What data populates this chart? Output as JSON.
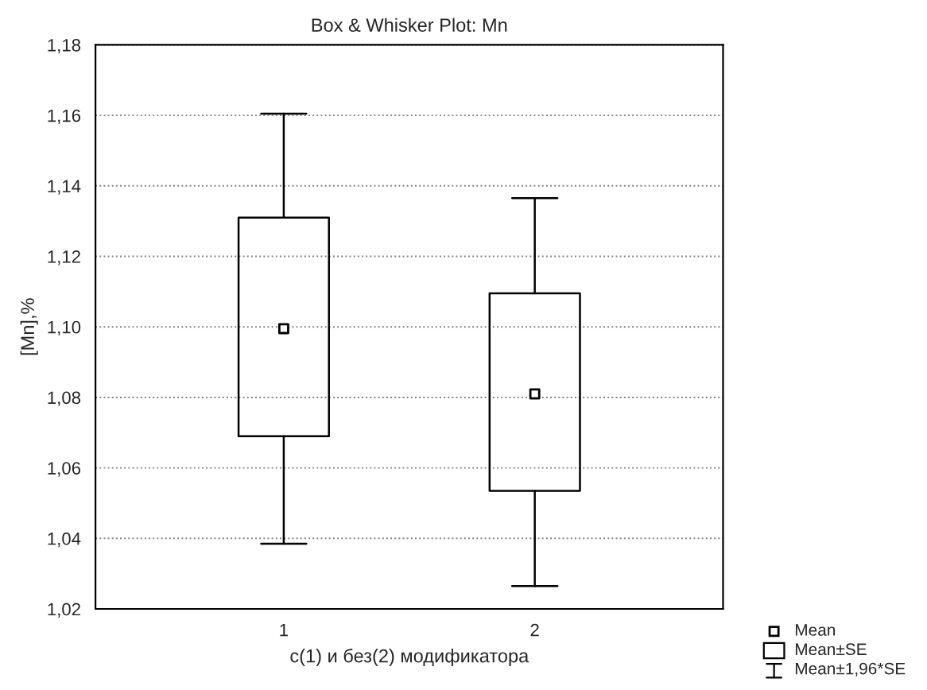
{
  "chart_data": {
    "type": "box",
    "title": "Box & Whisker Plot: Mn",
    "xlabel": "с(1) и без(2) модификатора",
    "ylabel": "[Mn],%",
    "categories": [
      "1",
      "2"
    ],
    "boxes": [
      {
        "low": 1.0385,
        "q1": 1.069,
        "median": 1.0995,
        "q3": 1.131,
        "high": 1.1605
      },
      {
        "low": 1.0265,
        "q1": 1.0535,
        "median": 1.081,
        "q3": 1.1095,
        "high": 1.1365
      }
    ],
    "ylim": [
      1.02,
      1.18
    ],
    "yticks": [
      {
        "value": 1.02,
        "label": "1,02"
      },
      {
        "value": 1.04,
        "label": "1,04"
      },
      {
        "value": 1.06,
        "label": "1,06"
      },
      {
        "value": 1.08,
        "label": "1,08"
      },
      {
        "value": 1.1,
        "label": "1,10"
      },
      {
        "value": 1.12,
        "label": "1,12"
      },
      {
        "value": 1.14,
        "label": "1,14"
      },
      {
        "value": 1.16,
        "label": "1,16"
      },
      {
        "value": 1.18,
        "label": "1,18"
      }
    ],
    "grid": "y",
    "marker": "square",
    "annotations": [
      "Mean",
      "Mean±SE",
      "Mean±1,96*SE"
    ]
  }
}
